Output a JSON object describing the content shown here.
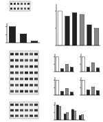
{
  "chart_data": [
    {
      "type": "bar",
      "categories": [
        null,
        null,
        null
      ],
      "values": [
        1.0,
        0.55,
        0.1
      ],
      "colors": [
        "#222222",
        "#222222",
        "#222222"
      ],
      "ylim": [
        0,
        1.2
      ],
      "yticks": [
        0,
        0.5,
        1
      ],
      "tick_labels": false
    },
    {
      "type": "bar",
      "categories": [
        null,
        null,
        null,
        null,
        null,
        null
      ],
      "values": [
        1.0,
        0.85,
        0.95,
        0.9,
        0.6,
        0.5
      ],
      "colors": [
        "#ffffff",
        "#222222",
        "#222222",
        "#888888",
        "#222222",
        "#888888"
      ],
      "ylim": [
        0,
        1.2
      ],
      "yticks": [
        0,
        0.5,
        1
      ],
      "tick_labels": false
    },
    {
      "type": "bar",
      "categories": [
        null,
        null,
        null,
        null
      ],
      "values": [
        1.0,
        0.2,
        0.5,
        0.3
      ],
      "colors": [
        "#ffffff",
        "#222222",
        "#888888",
        "#222222"
      ],
      "ylim": [
        0,
        1.2
      ],
      "yticks": [
        0,
        0.5,
        1
      ],
      "tick_labels": false
    },
    {
      "type": "bar",
      "categories": [
        null,
        null,
        null,
        null
      ],
      "values": [
        1.0,
        0.3,
        0.6,
        0.25
      ],
      "colors": [
        "#ffffff",
        "#222222",
        "#888888",
        "#222222"
      ],
      "ylim": [
        0,
        1.2
      ],
      "yticks": [
        0,
        0.5,
        1
      ],
      "tick_labels": false
    },
    {
      "type": "bar",
      "categories": [
        null,
        null,
        null,
        null
      ],
      "values": [
        1.0,
        0.25,
        0.45,
        0.2
      ],
      "colors": [
        "#ffffff",
        "#222222",
        "#888888",
        "#222222"
      ],
      "ylim": [
        0,
        1.2
      ],
      "yticks": [
        0,
        0.5,
        1
      ],
      "tick_labels": false
    },
    {
      "type": "bar",
      "categories": [
        null,
        null,
        null,
        null
      ],
      "values": [
        1.0,
        0.35,
        0.55,
        0.3
      ],
      "colors": [
        "#ffffff",
        "#222222",
        "#888888",
        "#222222"
      ],
      "ylim": [
        0,
        1.2
      ],
      "yticks": [
        0,
        0.5,
        1
      ],
      "tick_labels": false
    },
    {
      "type": "bar",
      "categories": [
        null,
        null,
        null,
        null
      ],
      "series": [
        {
          "color": "#222222",
          "values": [
            1.0,
            0.4,
            0.7,
            0.3
          ]
        },
        {
          "color": "#999999",
          "values": [
            0.9,
            0.5,
            0.6,
            0.35
          ]
        }
      ],
      "ylim": [
        0,
        1.2
      ],
      "yticks": [
        0,
        0.5,
        1
      ],
      "tick_labels": false
    }
  ]
}
